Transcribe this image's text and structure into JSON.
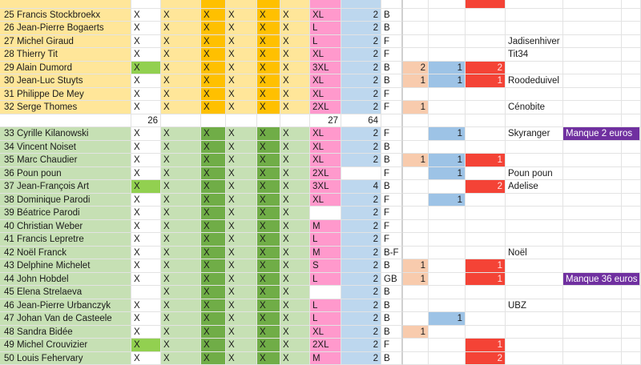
{
  "colors": {
    "yellow_light": "#ffe699",
    "yellow_dark": "#ffc000",
    "green_light": "#c6e0b4",
    "green_dark": "#70ad47",
    "green_bright": "#92d050",
    "pink": "#ff99cc",
    "light_blue": "#bdd7ee",
    "salmon": "#f8cbad",
    "blue": "#9dc3e6",
    "red": "#f44336",
    "purple": "#7030a0"
  },
  "groups": [
    {
      "name": "yellow",
      "rows": [
        {
          "name": "25 Francis Stockbroekx",
          "a": "X",
          "a_hl": false,
          "b": "X",
          "c": "X",
          "d": "X",
          "e": "X",
          "f": "X",
          "size": "XL",
          "qty": "2",
          "type": "B",
          "g": "",
          "h": "",
          "i": "",
          "note": "",
          "pay": ""
        },
        {
          "name": "26 Jean-Pierre Bogaerts",
          "a": "X",
          "a_hl": false,
          "b": "X",
          "c": "X",
          "d": "X",
          "e": "X",
          "f": "X",
          "size": "L",
          "qty": "2",
          "type": "B",
          "g": "",
          "h": "",
          "i": "",
          "note": "",
          "pay": ""
        },
        {
          "name": "27 Michel Giraud",
          "a": "X",
          "a_hl": false,
          "b": "X",
          "c": "X",
          "d": "X",
          "e": "X",
          "f": "X",
          "size": "L",
          "qty": "2",
          "type": "F",
          "g": "",
          "h": "",
          "i": "",
          "note": "Jadisenhiver",
          "pay": ""
        },
        {
          "name": "28 Thierry Tit",
          "a": "X",
          "a_hl": false,
          "b": "X",
          "c": "X",
          "d": "X",
          "e": "X",
          "f": "X",
          "size": "XL",
          "qty": "2",
          "type": "F",
          "g": "",
          "h": "",
          "i": "",
          "note": "Tit34",
          "pay": ""
        },
        {
          "name": "29 Alain Dumord",
          "a": "X",
          "a_hl": true,
          "b": "X",
          "c": "X",
          "d": "X",
          "e": "X",
          "f": "X",
          "size": "3XL",
          "qty": "2",
          "type": "B",
          "g": "2",
          "h": "1",
          "i": "2",
          "note": "",
          "pay": ""
        },
        {
          "name": "30 Jean-Luc Stuyts",
          "a": "X",
          "a_hl": false,
          "b": "X",
          "c": "X",
          "d": "X",
          "e": "X",
          "f": "X",
          "size": "XL",
          "qty": "2",
          "type": "B",
          "g": "1",
          "h": "1",
          "i": "1",
          "note": "Roodeduivel",
          "pay": ""
        },
        {
          "name": "31 Philippe De Mey",
          "a": "X",
          "a_hl": false,
          "b": "X",
          "c": "X",
          "d": "X",
          "e": "X",
          "f": "X",
          "size": "XL",
          "qty": "2",
          "type": "F",
          "g": "",
          "h": "",
          "i": "",
          "note": "",
          "pay": ""
        },
        {
          "name": "32 Serge Thomes",
          "a": "X",
          "a_hl": false,
          "b": "X",
          "c": "X",
          "d": "X",
          "e": "X",
          "f": "X",
          "size": "2XL",
          "qty": "2",
          "type": "F",
          "g": "1",
          "h": "",
          "i": "",
          "note": "Cénobite",
          "pay": ""
        }
      ]
    },
    {
      "name": "green",
      "rows": [
        {
          "name": "33 Cyrille Kilanowski",
          "a": "X",
          "a_hl": false,
          "b": "X",
          "c": "X",
          "d": "X",
          "e": "X",
          "f": "X",
          "size": "XL",
          "qty": "2",
          "type": "F",
          "g": "",
          "h": "1",
          "i": "",
          "note": "Skyranger",
          "pay": "Manque 2 euros"
        },
        {
          "name": "34 Vincent Noiset",
          "a": "X",
          "a_hl": false,
          "b": "X",
          "c": "X",
          "d": "X",
          "e": "X",
          "f": "X",
          "size": "XL",
          "qty": "2",
          "type": "B",
          "g": "",
          "h": "",
          "i": "",
          "note": "",
          "pay": ""
        },
        {
          "name": "35 Marc Chaudier",
          "a": "X",
          "a_hl": false,
          "b": "X",
          "c": "X",
          "d": "X",
          "e": "X",
          "f": "X",
          "size": "XL",
          "qty": "2",
          "type": "B",
          "g": "1",
          "h": "1",
          "i": "1",
          "note": "",
          "pay": ""
        },
        {
          "name": "36 Poun poun",
          "a": "X",
          "a_hl": false,
          "b": "X",
          "c": "X",
          "d": "X",
          "e": "X",
          "f": "X",
          "size": "2XL",
          "qty": "",
          "type": "F",
          "g": "",
          "h": "1",
          "i": "",
          "note": "Poun poun",
          "pay": ""
        },
        {
          "name": "37 Jean-François  Art",
          "a": "X",
          "a_hl": true,
          "b": "X",
          "c": "X",
          "d": "X",
          "e": "X",
          "f": "X",
          "size": "3XL",
          "qty": "4",
          "type": "B",
          "g": "",
          "h": "",
          "i": "2",
          "note": "Adelise",
          "pay": ""
        },
        {
          "name": "38 Dominique Parodi",
          "a": "X",
          "a_hl": false,
          "b": "X",
          "c": "X",
          "d": "X",
          "e": "X",
          "f": "X",
          "size": "XL",
          "qty": "2",
          "type": "F",
          "g": "",
          "h": "1",
          "i": "",
          "note": "",
          "pay": ""
        },
        {
          "name": "39 Béatrice Parodi",
          "a": "X",
          "a_hl": false,
          "b": "X",
          "c": "X",
          "d": "X",
          "e": "X",
          "f": "X",
          "size": "",
          "qty": "2",
          "type": "F",
          "g": "",
          "h": "",
          "i": "",
          "note": "",
          "pay": ""
        },
        {
          "name": "40 Christian Weber",
          "a": "X",
          "a_hl": false,
          "b": "X",
          "c": "X",
          "d": "X",
          "e": "X",
          "f": "X",
          "size": "M",
          "qty": "2",
          "type": "F",
          "g": "",
          "h": "",
          "i": "",
          "note": "",
          "pay": ""
        },
        {
          "name": "41 Francis Lepretre",
          "a": "X",
          "a_hl": false,
          "b": "X",
          "c": "X",
          "d": "X",
          "e": "X",
          "f": "X",
          "size": "L",
          "qty": "2",
          "type": "F",
          "g": "",
          "h": "",
          "i": "",
          "note": "",
          "pay": ""
        },
        {
          "name": "42 Noël Franck",
          "a": "X",
          "a_hl": false,
          "b": "X",
          "c": "X",
          "d": "X",
          "e": "X",
          "f": "X",
          "size": "M",
          "qty": "2",
          "type": "B-F",
          "g": "",
          "h": "",
          "i": "",
          "note": "Noël",
          "pay": ""
        },
        {
          "name": "43 Delphine Michelet",
          "a": "X",
          "a_hl": false,
          "b": "X",
          "c": "X",
          "d": "X",
          "e": "X",
          "f": "X",
          "size": "S",
          "qty": "2",
          "type": "B",
          "g": "1",
          "h": "",
          "i": "1",
          "note": "",
          "pay": ""
        },
        {
          "name": "44 John Hobdel",
          "a": "X",
          "a_hl": false,
          "b": "X",
          "c": "X",
          "d": "X",
          "e": "X",
          "f": "X",
          "size": "L",
          "qty": "2",
          "type": "GB",
          "g": "1",
          "h": "",
          "i": "1",
          "note": "",
          "pay": "Manque 36 euros"
        },
        {
          "name": "45 Elena Strelaeva",
          "a": "",
          "a_hl": false,
          "b": "X",
          "c": "X",
          "d": "X",
          "e": "X",
          "f": "X",
          "size": "",
          "qty": "2",
          "type": "B",
          "g": "",
          "h": "",
          "i": "",
          "note": "",
          "pay": ""
        },
        {
          "name": "46 Jean-Pierre Urbanczyk",
          "a": "X",
          "a_hl": false,
          "b": "X",
          "c": "X",
          "d": "X",
          "e": "X",
          "f": "X",
          "size": "L",
          "qty": "2",
          "type": "B",
          "g": "",
          "h": "",
          "i": "",
          "note": "UBZ",
          "pay": ""
        },
        {
          "name": "47 Johan Van de Casteele",
          "a": "X",
          "a_hl": false,
          "b": "X",
          "c": "X",
          "d": "X",
          "e": "X",
          "f": "X",
          "size": "L",
          "qty": "2",
          "type": "B",
          "g": "",
          "h": "1",
          "i": "",
          "note": "",
          "pay": ""
        },
        {
          "name": "48 Sandra Bidée",
          "a": "X",
          "a_hl": false,
          "b": "X",
          "c": "X",
          "d": "X",
          "e": "X",
          "f": "X",
          "size": "XL",
          "qty": "2",
          "type": "B",
          "g": "1",
          "h": "",
          "i": "",
          "note": "",
          "pay": ""
        },
        {
          "name": "49 Michel Crouvizier",
          "a": "X",
          "a_hl": true,
          "b": "X",
          "c": "X",
          "d": "X",
          "e": "X",
          "f": "X",
          "size": "2XL",
          "qty": "2",
          "type": "F",
          "g": "",
          "h": "",
          "i": "1",
          "note": "",
          "pay": ""
        },
        {
          "name": "50 Louis Fehervary",
          "a": "X",
          "a_hl": false,
          "b": "X",
          "c": "X",
          "d": "X",
          "e": "X",
          "f": "X",
          "size": "M",
          "qty": "2",
          "type": "B",
          "g": "",
          "h": "",
          "i": "2",
          "note": "",
          "pay": ""
        }
      ]
    }
  ],
  "totals": {
    "a": "26",
    "size": "27",
    "qty": "64"
  }
}
